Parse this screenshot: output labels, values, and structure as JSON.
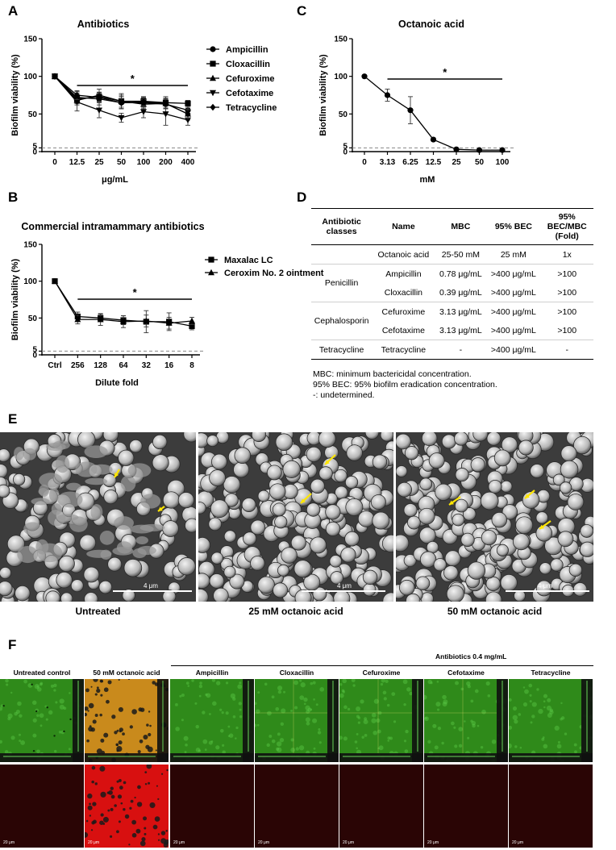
{
  "panels": {
    "A": {
      "letter": "A",
      "chart_data": {
        "type": "line",
        "title": "Antibiotics",
        "xlabel": "μg/mL",
        "ylabel": "Biofilm viability (%)",
        "categories": [
          "0",
          "12.5",
          "25",
          "50",
          "100",
          "200",
          "400"
        ],
        "ylim": [
          0,
          150
        ],
        "yticks": [
          "0",
          "5",
          "50",
          "100",
          "150"
        ],
        "threshold": 5,
        "significance": "*",
        "legend_position": "right",
        "series": [
          {
            "name": "Ampicillin",
            "marker": "circle",
            "values": [
              100,
              72,
              70,
              65,
              65,
              63,
              55
            ],
            "errors": [
              0,
              8,
              8,
              8,
              6,
              6,
              6
            ]
          },
          {
            "name": "Cloxacillin",
            "marker": "square",
            "values": [
              100,
              70,
              73,
              67,
              67,
              65,
              64
            ],
            "errors": [
              0,
              6,
              6,
              8,
              6,
              8,
              4
            ]
          },
          {
            "name": "Cefuroxime",
            "marker": "triangle",
            "values": [
              100,
              68,
              75,
              67,
              63,
              64,
              50
            ],
            "errors": [
              0,
              6,
              8,
              10,
              6,
              7,
              8
            ]
          },
          {
            "name": "Cefotaxime",
            "marker": "triangle-down",
            "values": [
              100,
              66,
              55,
              45,
              53,
              50,
              42
            ],
            "errors": [
              0,
              12,
              10,
              6,
              8,
              15,
              7
            ]
          },
          {
            "name": "Tetracycline",
            "marker": "diamond",
            "values": [
              100,
              75,
              72,
              65,
              66,
              64,
              50
            ],
            "errors": [
              0,
              6,
              6,
              8,
              6,
              6,
              6
            ]
          }
        ]
      }
    },
    "B": {
      "letter": "B",
      "chart_data": {
        "type": "line",
        "title": "Commercial intramammary antibiotics",
        "xlabel": "Dilute fold",
        "ylabel": "Biofilm viability (%)",
        "categories": [
          "Ctrl",
          "256",
          "128",
          "64",
          "32",
          "16",
          "8"
        ],
        "ylim": [
          0,
          150
        ],
        "yticks": [
          "0",
          "5",
          "50",
          "100",
          "150"
        ],
        "threshold": 5,
        "significance": "*",
        "legend_position": "right",
        "series": [
          {
            "name": "Maxalac LC",
            "marker": "square",
            "values": [
              100,
              52,
              50,
              47,
              45,
              45,
              39
            ],
            "errors": [
              0,
              6,
              5,
              6,
              15,
              12,
              5
            ]
          },
          {
            "name": "Ceroxim No. 2 ointment",
            "marker": "triangle",
            "values": [
              100,
              48,
              48,
              45,
              46,
              43,
              46
            ],
            "errors": [
              0,
              6,
              8,
              8,
              8,
              8,
              5
            ]
          }
        ]
      }
    },
    "C": {
      "letter": "C",
      "chart_data": {
        "type": "line",
        "title": "Octanoic acid",
        "xlabel": "mM",
        "ylabel": "Biofilm viability (%)",
        "categories": [
          "0",
          "3.13",
          "6.25",
          "12.5",
          "25",
          "50",
          "100"
        ],
        "ylim": [
          0,
          150
        ],
        "yticks": [
          "0",
          "5",
          "50",
          "100",
          "150"
        ],
        "threshold": 5,
        "significance": "*",
        "series": [
          {
            "name": "",
            "marker": "circle",
            "values": [
              100,
              75,
              55,
              16,
              3,
              2,
              2
            ],
            "errors": [
              0,
              8,
              18,
              2,
              1,
              1,
              1
            ]
          }
        ]
      }
    },
    "D": {
      "letter": "D",
      "table": {
        "headers": [
          "Antibiotic classes",
          "Name",
          "MBC",
          "95% BEC",
          "95% BEC/MBC (Fold)"
        ],
        "rows": [
          {
            "cls": "",
            "name": "Octanoic acid",
            "mbc": "25-50 mM",
            "bec": "25 mM",
            "fold": "1x"
          },
          {
            "cls": "Penicillin",
            "name": "Ampicillin",
            "mbc": "0.78 μg/mL",
            "bec": ">400 μg/mL",
            "fold": ">100"
          },
          {
            "cls": "",
            "name": "Cloxacillin",
            "mbc": "0.39 μg/mL",
            "bec": ">400 μg/mL",
            "fold": ">100"
          },
          {
            "cls": "Cephalosporin",
            "name": "Cefuroxime",
            "mbc": "3.13 μg/mL",
            "bec": ">400 μg/mL",
            "fold": ">100"
          },
          {
            "cls": "",
            "name": "Cefotaxime",
            "mbc": "3.13 μg/mL",
            "bec": ">400 μg/mL",
            "fold": ">100"
          },
          {
            "cls": "Tetracycline",
            "name": "Tetracycline",
            "mbc": "-",
            "bec": ">400 μg/mL",
            "fold": "-"
          }
        ],
        "notes": [
          "MBC: minimum bactericidal concentration.",
          "95% BEC: 95% biofilm eradication concentration.",
          "-: undetermined."
        ]
      }
    },
    "E": {
      "letter": "E",
      "images": [
        {
          "caption": "Untreated",
          "scale": "4 μm"
        },
        {
          "caption": "25 mM octanoic acid",
          "scale": "4 μm"
        },
        {
          "caption": "50 mM octanoic acid",
          "scale": "4 μm"
        }
      ]
    },
    "F": {
      "letter": "F",
      "group_label": "Antibiotics 0.4 mg/mL",
      "columns": [
        "Untreated control",
        "50 mM octanoic acid",
        "Ampicillin",
        "Cloxacillin",
        "Cefuroxime",
        "Cefotaxime",
        "Tetracycline"
      ],
      "scale": "20 μm",
      "colors": {
        "green": "#2f8a1a",
        "orange": "#c98a1c",
        "red_dark": "#2a0505",
        "red_bright": "#d81010"
      }
    }
  }
}
